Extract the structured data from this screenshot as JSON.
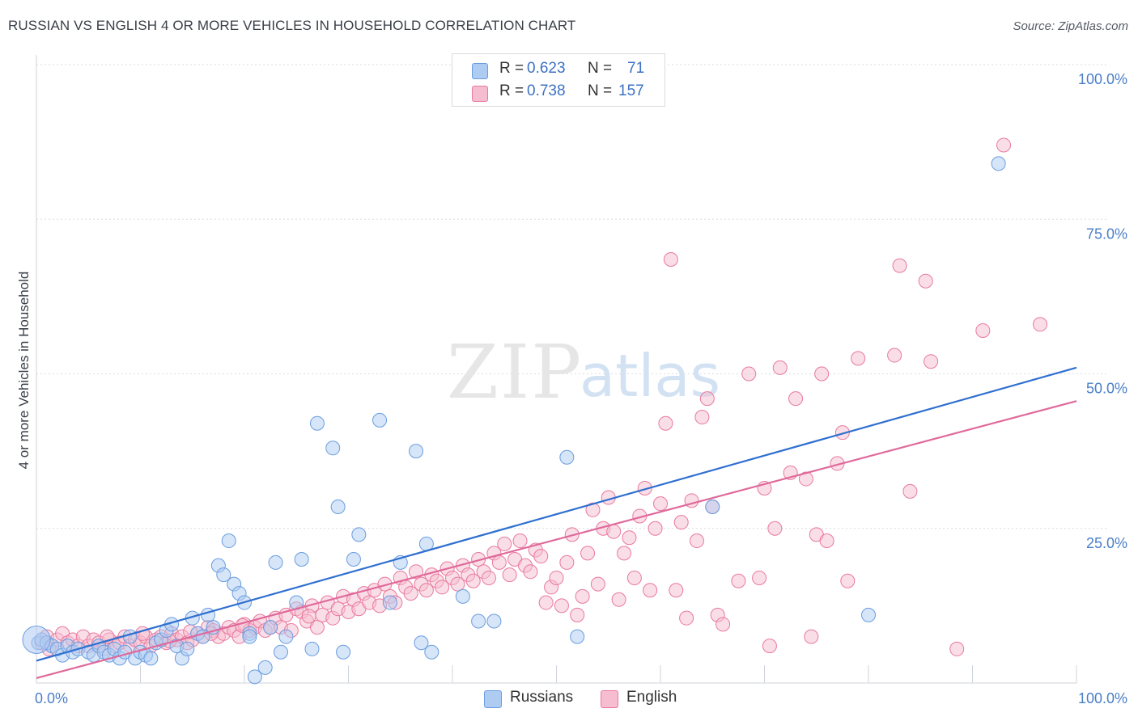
{
  "title": "RUSSIAN VS ENGLISH 4 OR MORE VEHICLES IN HOUSEHOLD CORRELATION CHART",
  "source": "Source: ZipAtlas.com",
  "watermark": {
    "zip": "ZIP",
    "atlas": "atlas"
  },
  "stats": {
    "r_label": "R =",
    "n_label": "N =",
    "rows": [
      {
        "r": "0.623",
        "n": "71",
        "color": "#aecbf2"
      },
      {
        "r": "0.738",
        "n": "157",
        "color": "#f6bdd0"
      }
    ]
  },
  "legend": {
    "russians": "Russians",
    "english": "English"
  },
  "chart_data": {
    "type": "scatter",
    "ylabel": "4 or more Vehicles in Household",
    "xlabel": "",
    "xlim": [
      0,
      100
    ],
    "ylim": [
      0,
      100
    ],
    "x_tick_labels": [
      "0.0%",
      "100.0%"
    ],
    "y_ticks": [
      {
        "value": 100,
        "label": "100.0%"
      },
      {
        "value": 75,
        "label": "75.0%"
      },
      {
        "value": 50,
        "label": "50.0%"
      },
      {
        "value": 25,
        "label": "25.0%"
      }
    ],
    "grid": true,
    "legend_position": "bottom-center",
    "series": [
      {
        "name": "Russians",
        "color": "#6a9de0",
        "fill": "#aecbf2",
        "line_color": "#2f6fd0",
        "trend": [
          [
            0,
            3.6
          ],
          [
            100,
            51.0
          ]
        ],
        "points": [
          [
            0.2,
            6.5
          ],
          [
            0.5,
            7.0
          ],
          [
            1.0,
            6.5
          ],
          [
            1.5,
            6.0
          ],
          [
            2.0,
            5.5
          ],
          [
            2.5,
            4.5
          ],
          [
            3.0,
            6.0
          ],
          [
            3.5,
            5.0
          ],
          [
            4.0,
            5.5
          ],
          [
            5.0,
            5.0
          ],
          [
            5.5,
            4.5
          ],
          [
            6.0,
            6.0
          ],
          [
            6.5,
            5.0
          ],
          [
            7.0,
            4.5
          ],
          [
            7.5,
            5.5
          ],
          [
            8.0,
            4.0
          ],
          [
            8.5,
            5.0
          ],
          [
            9.0,
            7.5
          ],
          [
            9.5,
            4.0
          ],
          [
            10.0,
            5.0
          ],
          [
            10.5,
            4.5
          ],
          [
            11.0,
            4.0
          ],
          [
            11.5,
            6.5
          ],
          [
            12.0,
            7.0
          ],
          [
            12.5,
            8.5
          ],
          [
            13.0,
            9.5
          ],
          [
            13.5,
            6.0
          ],
          [
            14.0,
            4.0
          ],
          [
            14.5,
            5.5
          ],
          [
            15.0,
            10.5
          ],
          [
            15.5,
            8.0
          ],
          [
            16.0,
            7.5
          ],
          [
            16.5,
            11.0
          ],
          [
            17.0,
            9.0
          ],
          [
            17.5,
            19.0
          ],
          [
            18.0,
            17.5
          ],
          [
            18.5,
            23.0
          ],
          [
            19.0,
            16.0
          ],
          [
            19.5,
            14.5
          ],
          [
            20.0,
            13.0
          ],
          [
            20.5,
            8.0
          ],
          [
            21.0,
            1.0
          ],
          [
            22.0,
            2.5
          ],
          [
            23.5,
            5.0
          ],
          [
            24.0,
            7.5
          ],
          [
            20.5,
            7.5
          ],
          [
            22.5,
            9.0
          ],
          [
            23.0,
            19.5
          ],
          [
            25.0,
            13.0
          ],
          [
            25.5,
            20.0
          ],
          [
            27.0,
            42.0
          ],
          [
            26.5,
            5.5
          ],
          [
            28.5,
            38.0
          ],
          [
            29.0,
            28.5
          ],
          [
            29.5,
            5.0
          ],
          [
            30.5,
            20.0
          ],
          [
            31.0,
            24.0
          ],
          [
            33.0,
            42.5
          ],
          [
            34.0,
            13.0
          ],
          [
            35.0,
            19.5
          ],
          [
            36.5,
            37.5
          ],
          [
            37.0,
            6.5
          ],
          [
            37.5,
            22.5
          ],
          [
            38.0,
            5.0
          ],
          [
            41.0,
            14.0
          ],
          [
            42.5,
            10.0
          ],
          [
            44.0,
            10.0
          ],
          [
            51.0,
            36.5
          ],
          [
            52.0,
            7.5
          ],
          [
            65.0,
            28.5
          ],
          [
            80.0,
            11.0
          ],
          [
            92.5,
            84.0
          ]
        ]
      },
      {
        "name": "English",
        "color": "#e9799e",
        "fill": "#f6bdd0",
        "line_color": "#e0699a",
        "trend": [
          [
            0,
            0.8
          ],
          [
            100,
            45.6
          ]
        ],
        "points": [
          [
            0.5,
            6.5
          ],
          [
            1.0,
            7.5
          ],
          [
            1.5,
            6.0
          ],
          [
            2.0,
            7.0
          ],
          [
            2.5,
            8.0
          ],
          [
            3.0,
            6.5
          ],
          [
            3.5,
            7.0
          ],
          [
            4.0,
            6.0
          ],
          [
            4.5,
            7.5
          ],
          [
            5.0,
            6.0
          ],
          [
            5.5,
            7.0
          ],
          [
            6.0,
            6.5
          ],
          [
            6.5,
            5.5
          ],
          [
            7.0,
            7.0
          ],
          [
            7.5,
            6.0
          ],
          [
            8.0,
            6.5
          ],
          [
            8.5,
            7.5
          ],
          [
            9.0,
            6.0
          ],
          [
            9.5,
            7.0
          ],
          [
            10.0,
            6.5
          ],
          [
            10.5,
            7.5
          ],
          [
            11.0,
            6.0
          ],
          [
            11.5,
            7.0
          ],
          [
            12.0,
            7.5
          ],
          [
            12.5,
            6.5
          ],
          [
            13.0,
            8.0
          ],
          [
            13.5,
            7.0
          ],
          [
            14.0,
            7.5
          ],
          [
            14.5,
            6.5
          ],
          [
            15.0,
            7.0
          ],
          [
            15.5,
            8.0
          ],
          [
            16.0,
            7.5
          ],
          [
            16.5,
            9.0
          ],
          [
            17.0,
            8.5
          ],
          [
            17.5,
            7.5
          ],
          [
            18.0,
            8.0
          ],
          [
            18.5,
            9.0
          ],
          [
            19.0,
            8.5
          ],
          [
            19.5,
            7.5
          ],
          [
            20.0,
            9.5
          ],
          [
            20.5,
            8.5
          ],
          [
            21.0,
            9.0
          ],
          [
            21.5,
            10.0
          ],
          [
            22.0,
            8.5
          ],
          [
            22.5,
            9.0
          ],
          [
            23.0,
            10.5
          ],
          [
            23.5,
            9.0
          ],
          [
            24.0,
            11.0
          ],
          [
            24.5,
            8.5
          ],
          [
            25.0,
            12.0
          ],
          [
            25.5,
            11.5
          ],
          [
            26.0,
            10.0
          ],
          [
            26.5,
            12.5
          ],
          [
            27.0,
            9.0
          ],
          [
            27.5,
            11.0
          ],
          [
            28.0,
            13.0
          ],
          [
            28.5,
            10.5
          ],
          [
            29.0,
            12.0
          ],
          [
            29.5,
            14.0
          ],
          [
            30.0,
            11.5
          ],
          [
            30.5,
            13.5
          ],
          [
            31.0,
            12.0
          ],
          [
            31.5,
            14.5
          ],
          [
            32.0,
            13.0
          ],
          [
            32.5,
            15.0
          ],
          [
            33.0,
            12.5
          ],
          [
            33.5,
            16.0
          ],
          [
            34.0,
            14.0
          ],
          [
            34.5,
            13.0
          ],
          [
            35.0,
            17.0
          ],
          [
            35.5,
            15.5
          ],
          [
            36.0,
            14.5
          ],
          [
            36.5,
            18.0
          ],
          [
            37.0,
            16.0
          ],
          [
            37.5,
            15.0
          ],
          [
            38.0,
            17.5
          ],
          [
            38.5,
            16.5
          ],
          [
            39.0,
            15.5
          ],
          [
            39.5,
            18.5
          ],
          [
            40.0,
            17.0
          ],
          [
            40.5,
            16.0
          ],
          [
            41.0,
            19.0
          ],
          [
            41.5,
            17.5
          ],
          [
            42.0,
            16.5
          ],
          [
            42.5,
            20.0
          ],
          [
            43.0,
            18.0
          ],
          [
            43.5,
            17.0
          ],
          [
            44.0,
            21.0
          ],
          [
            44.5,
            19.5
          ],
          [
            45.0,
            22.5
          ],
          [
            45.5,
            17.5
          ],
          [
            46.0,
            20.0
          ],
          [
            46.5,
            23.0
          ],
          [
            47.0,
            19.0
          ],
          [
            47.5,
            18.0
          ],
          [
            48.0,
            21.5
          ],
          [
            48.5,
            20.5
          ],
          [
            49.0,
            13.0
          ],
          [
            49.5,
            15.5
          ],
          [
            50.0,
            17.0
          ],
          [
            50.5,
            12.5
          ],
          [
            51.0,
            19.5
          ],
          [
            51.5,
            24.0
          ],
          [
            52.0,
            11.0
          ],
          [
            52.5,
            14.0
          ],
          [
            53.0,
            21.0
          ],
          [
            53.5,
            28.0
          ],
          [
            54.0,
            16.0
          ],
          [
            54.5,
            25.0
          ],
          [
            55.0,
            30.0
          ],
          [
            55.5,
            24.5
          ],
          [
            56.0,
            13.5
          ],
          [
            56.5,
            21.0
          ],
          [
            57.0,
            23.5
          ],
          [
            57.5,
            17.0
          ],
          [
            58.0,
            27.0
          ],
          [
            58.5,
            31.5
          ],
          [
            59.0,
            15.0
          ],
          [
            59.5,
            25.0
          ],
          [
            60.0,
            29.0
          ],
          [
            60.5,
            42.0
          ],
          [
            61.0,
            68.5
          ],
          [
            61.5,
            15.0
          ],
          [
            62.0,
            26.0
          ],
          [
            62.5,
            10.5
          ],
          [
            63.0,
            29.5
          ],
          [
            63.5,
            23.0
          ],
          [
            64.0,
            43.0
          ],
          [
            64.5,
            46.0
          ],
          [
            65.0,
            28.5
          ],
          [
            65.5,
            11.0
          ],
          [
            66.0,
            9.5
          ],
          [
            67.5,
            16.5
          ],
          [
            68.5,
            50.0
          ],
          [
            69.5,
            17.0
          ],
          [
            70.0,
            31.5
          ],
          [
            70.5,
            6.0
          ],
          [
            71.0,
            25.0
          ],
          [
            71.5,
            51.0
          ],
          [
            72.5,
            34.0
          ],
          [
            73.0,
            46.0
          ],
          [
            74.0,
            33.0
          ],
          [
            74.5,
            7.5
          ],
          [
            75.0,
            24.0
          ],
          [
            75.5,
            50.0
          ],
          [
            76.0,
            23.0
          ],
          [
            77.0,
            35.5
          ],
          [
            77.5,
            40.5
          ],
          [
            78.0,
            16.5
          ],
          [
            79.0,
            52.5
          ],
          [
            82.5,
            53.0
          ],
          [
            83.0,
            67.5
          ],
          [
            84.0,
            31.0
          ],
          [
            85.5,
            65.0
          ],
          [
            86.0,
            52.0
          ],
          [
            88.5,
            5.5
          ],
          [
            91.0,
            57.0
          ],
          [
            93.0,
            87.0
          ],
          [
            96.5,
            58.0
          ],
          [
            1.2,
            5.5
          ],
          [
            6.8,
            7.5
          ],
          [
            10.2,
            8.0
          ],
          [
            12.8,
            6.8
          ],
          [
            14.8,
            8.3
          ],
          [
            16.8,
            8.0
          ],
          [
            19.8,
            9.3
          ],
          [
            26.2,
            10.8
          ]
        ]
      }
    ],
    "large_points": [
      {
        "series": "Russians",
        "x": 0.0,
        "y": 7.0
      }
    ]
  }
}
